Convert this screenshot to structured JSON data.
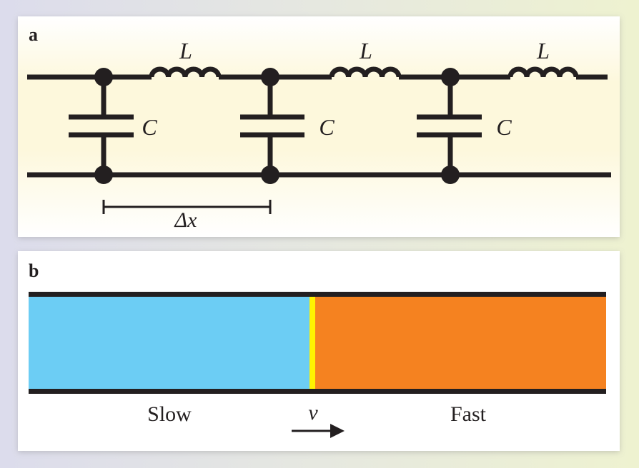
{
  "panel_a": {
    "label": "a",
    "inductor_label": "L",
    "capacitor_label": "C",
    "spacing_label": "Δx"
  },
  "panel_b": {
    "label": "b",
    "left_label": "Slow",
    "velocity_label": "v",
    "right_label": "Fast",
    "colors": {
      "slow": "#6ccdf4",
      "front": "#fff200",
      "fast": "#f58220"
    }
  }
}
